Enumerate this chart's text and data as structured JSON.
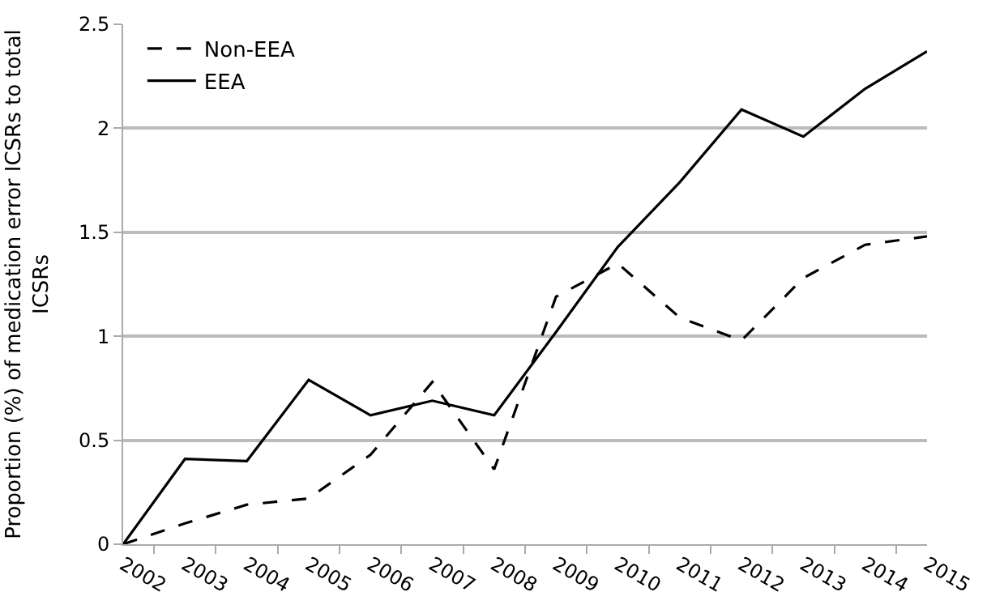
{
  "chart_data": {
    "type": "line",
    "ylabel": "Proportion (%) of medication error ICSRs to total ICSRs",
    "categories": [
      "2002",
      "2003",
      "2004",
      "2005",
      "2006",
      "2007",
      "2008",
      "2009",
      "2010",
      "2011",
      "2012",
      "2013",
      "2014",
      "2015"
    ],
    "series": [
      {
        "name": "Non-EEA",
        "color": "#000000",
        "line_style": "dashed",
        "values": [
          0,
          0.1,
          0.19,
          0.22,
          0.43,
          0.78,
          0.36,
          1.19,
          1.35,
          1.09,
          0.98,
          1.28,
          1.44,
          1.48
        ]
      },
      {
        "name": "EEA",
        "color": "#000000",
        "line_style": "solid",
        "values": [
          0,
          0.41,
          0.4,
          0.79,
          0.62,
          0.69,
          0.62,
          1.02,
          1.43,
          1.74,
          2.09,
          1.96,
          2.19,
          2.37
        ]
      }
    ],
    "ylim": [
      0,
      2.5
    ],
    "yticks": [
      0,
      0.5,
      1,
      1.5,
      2,
      2.5
    ],
    "grid": "y",
    "legend": "top left",
    "marker": "none"
  }
}
